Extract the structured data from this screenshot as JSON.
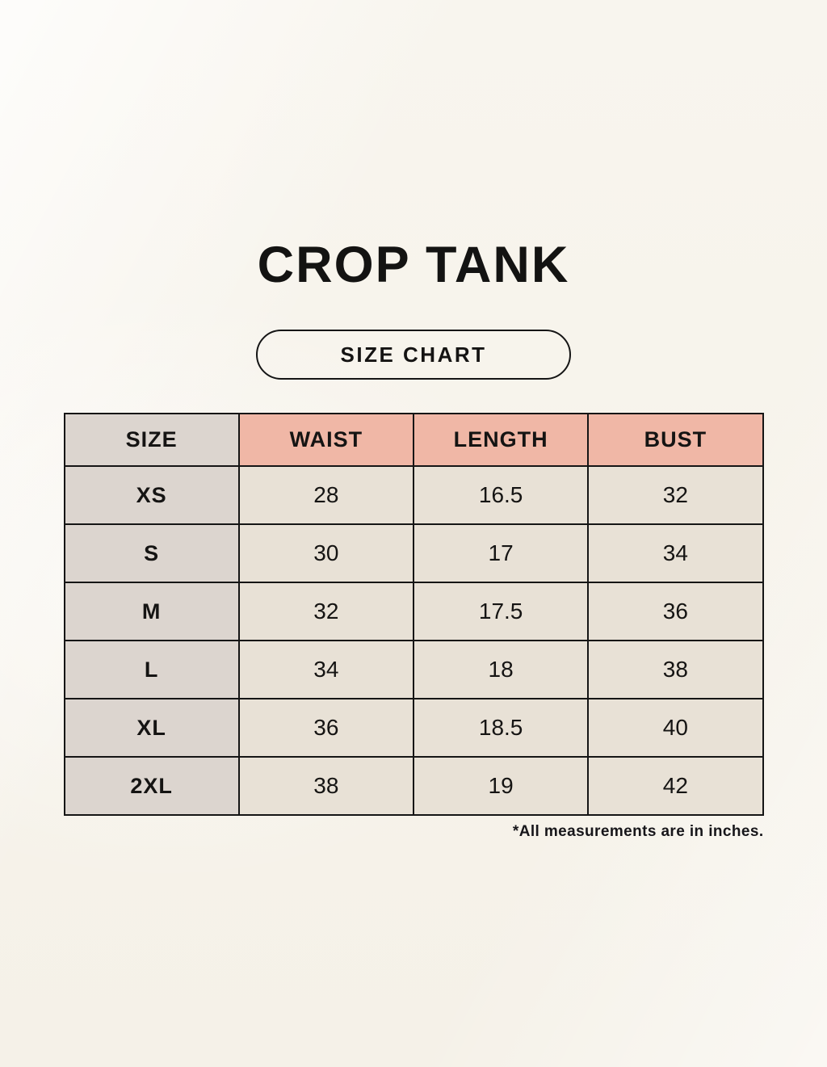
{
  "header": {
    "title": "CROP TANK",
    "badge_label": "SIZE CHART"
  },
  "table": {
    "columns": [
      "SIZE",
      "WAIST",
      "LENGTH",
      "BUST"
    ],
    "rows": [
      [
        "XS",
        "28",
        "16.5",
        "32"
      ],
      [
        "S",
        "30",
        "17",
        "34"
      ],
      [
        "M",
        "32",
        "17.5",
        "36"
      ],
      [
        "L",
        "34",
        "18",
        "38"
      ],
      [
        "XL",
        "36",
        "18.5",
        "40"
      ],
      [
        "2XL",
        "38",
        "19",
        "42"
      ]
    ]
  },
  "footnote": {
    "text": "*All measurements are in inches."
  },
  "colors": {
    "page_background": "#f6f2e9",
    "header_pink": "#f0b7a6",
    "size_column_gray": "#dcd5cf",
    "cell_beige": "#e8e1d6",
    "border_black": "#151515"
  }
}
